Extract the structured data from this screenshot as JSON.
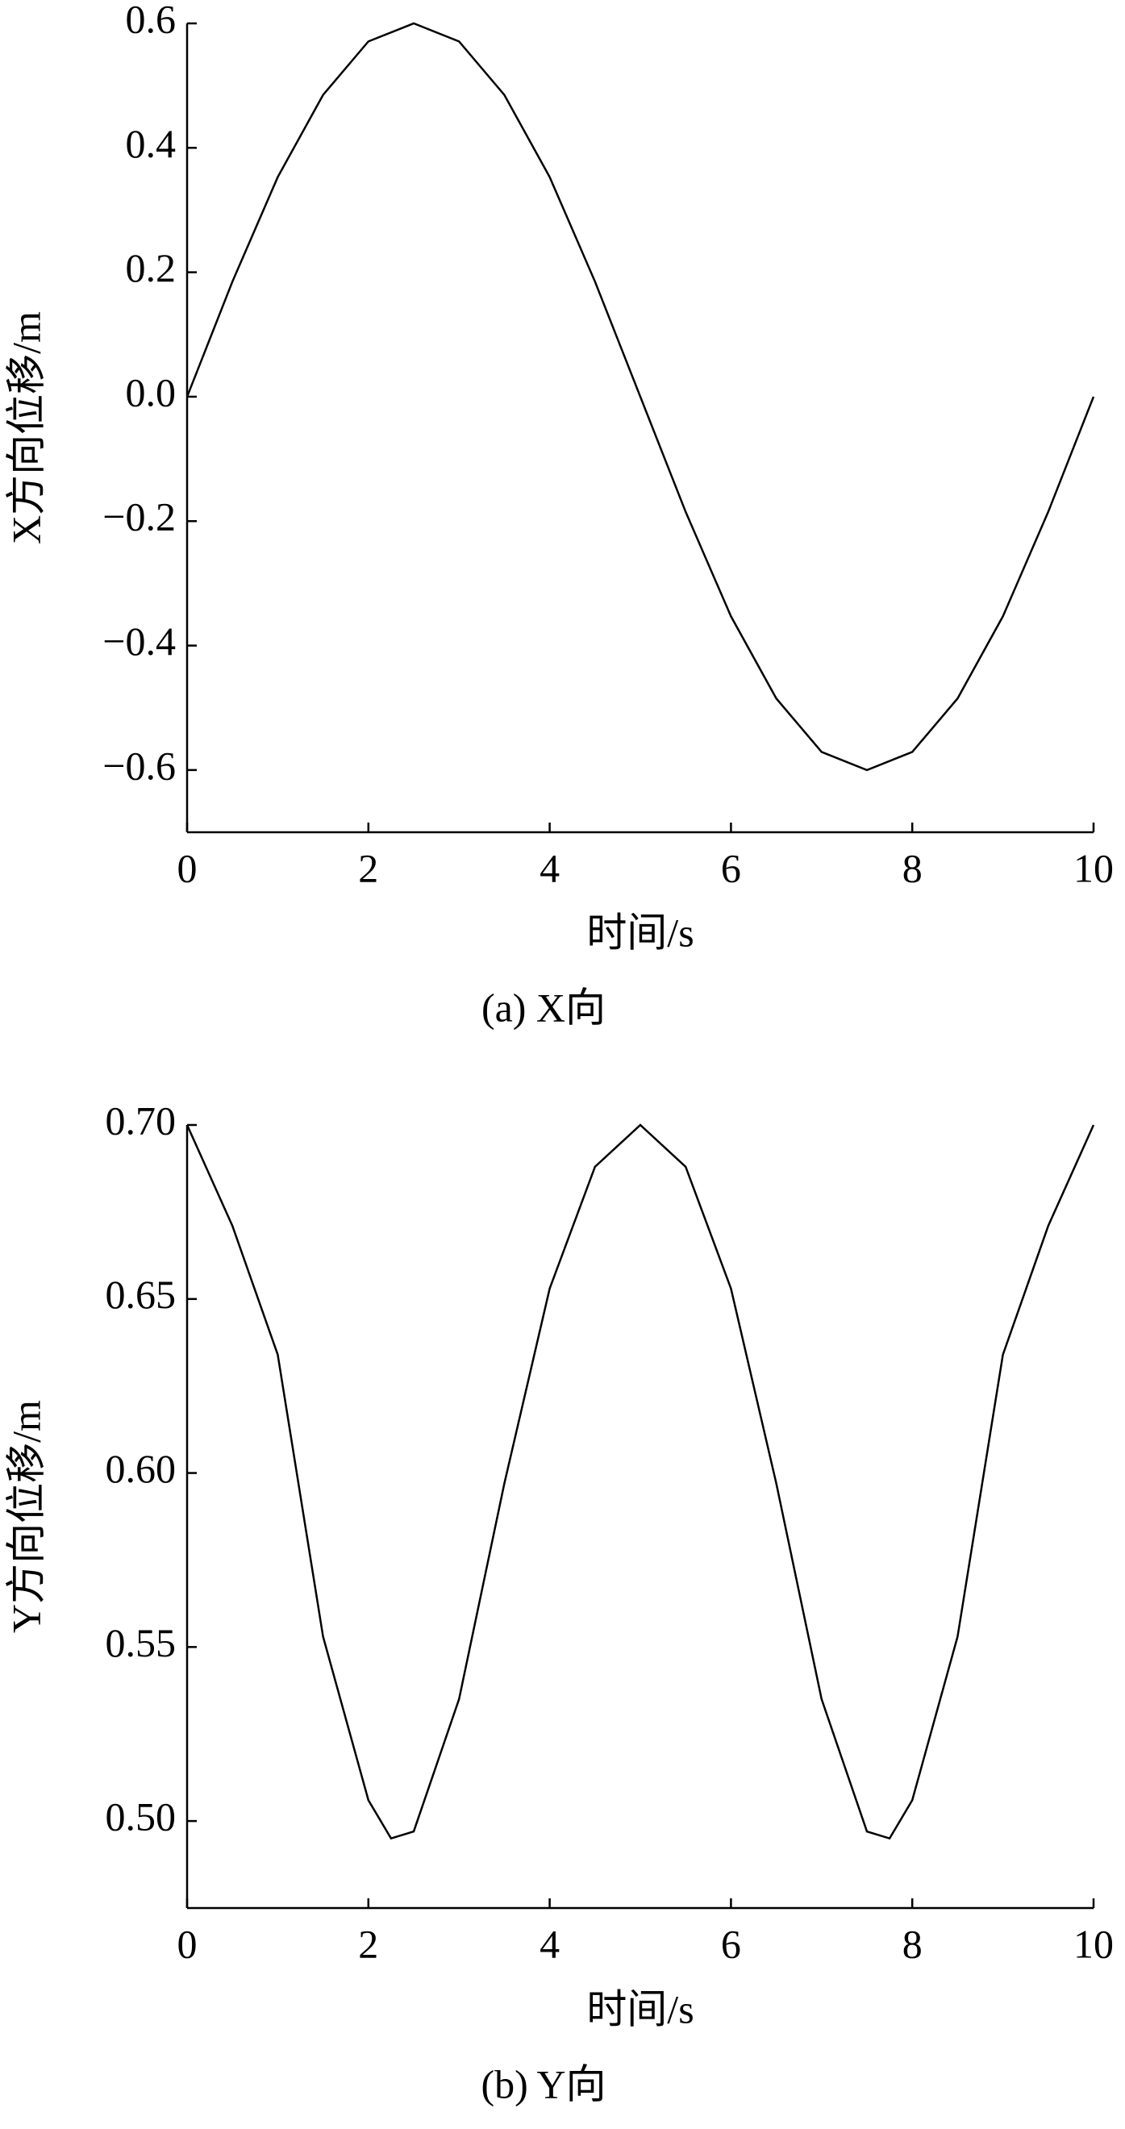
{
  "chart_data": [
    {
      "type": "line",
      "x_label": "时间/s",
      "y_label": "X方向位移/m",
      "caption": "(a)  X向",
      "x": [
        0,
        0.5,
        1,
        1.5,
        2,
        2.5,
        3,
        3.5,
        4,
        4.5,
        5,
        5.5,
        6,
        6.5,
        7,
        7.5,
        8,
        8.5,
        9,
        9.5,
        10
      ],
      "series": [
        {
          "color": "#000000",
          "values": [
            0,
            0.185,
            0.353,
            0.485,
            0.571,
            0.6,
            0.571,
            0.485,
            0.353,
            0.185,
            0,
            -0.185,
            -0.353,
            -0.485,
            -0.571,
            -0.6,
            -0.571,
            -0.485,
            -0.353,
            -0.185,
            0
          ]
        }
      ],
      "xlim": [
        0,
        10
      ],
      "xticks": [
        0,
        2,
        4,
        6,
        8,
        10
      ],
      "ylim": [
        -0.7,
        0.6
      ],
      "yticks": [
        {
          "value": -0.6,
          "label": "−0.6"
        },
        {
          "value": -0.4,
          "label": "−0.4"
        },
        {
          "value": -0.2,
          "label": "−0.2"
        },
        {
          "value": 0,
          "label": "0.0"
        },
        0.2,
        0.4,
        0.6
      ]
    },
    {
      "type": "line",
      "x_label": "时间/s",
      "y_label": "Y方向位移/m",
      "caption": "(b)  Y向",
      "x": [
        0,
        0.5,
        1,
        1.5,
        2,
        2.25,
        2.5,
        3,
        3.5,
        4,
        4.5,
        5,
        5.5,
        6,
        6.5,
        7,
        7.5,
        7.75,
        8,
        8.5,
        9,
        9.5,
        10
      ],
      "series": [
        {
          "color": "#000000",
          "values": [
            0.7,
            0.671,
            0.634,
            0.553,
            0.506,
            0.495,
            0.497,
            0.535,
            0.597,
            0.653,
            0.688,
            0.7,
            0.688,
            0.653,
            0.597,
            0.535,
            0.497,
            0.495,
            0.506,
            0.553,
            0.634,
            0.671,
            0.7
          ]
        }
      ],
      "xlim": [
        0,
        10
      ],
      "xticks": [
        0,
        2,
        4,
        6,
        8,
        10
      ],
      "ylim": [
        0.475,
        0.7
      ],
      "yticks": [
        {
          "value": 0.5,
          "label": "0.50"
        },
        0.55,
        {
          "value": 0.6,
          "label": "0.60"
        },
        0.65,
        {
          "value": 0.7,
          "label": "0.70"
        }
      ]
    }
  ]
}
